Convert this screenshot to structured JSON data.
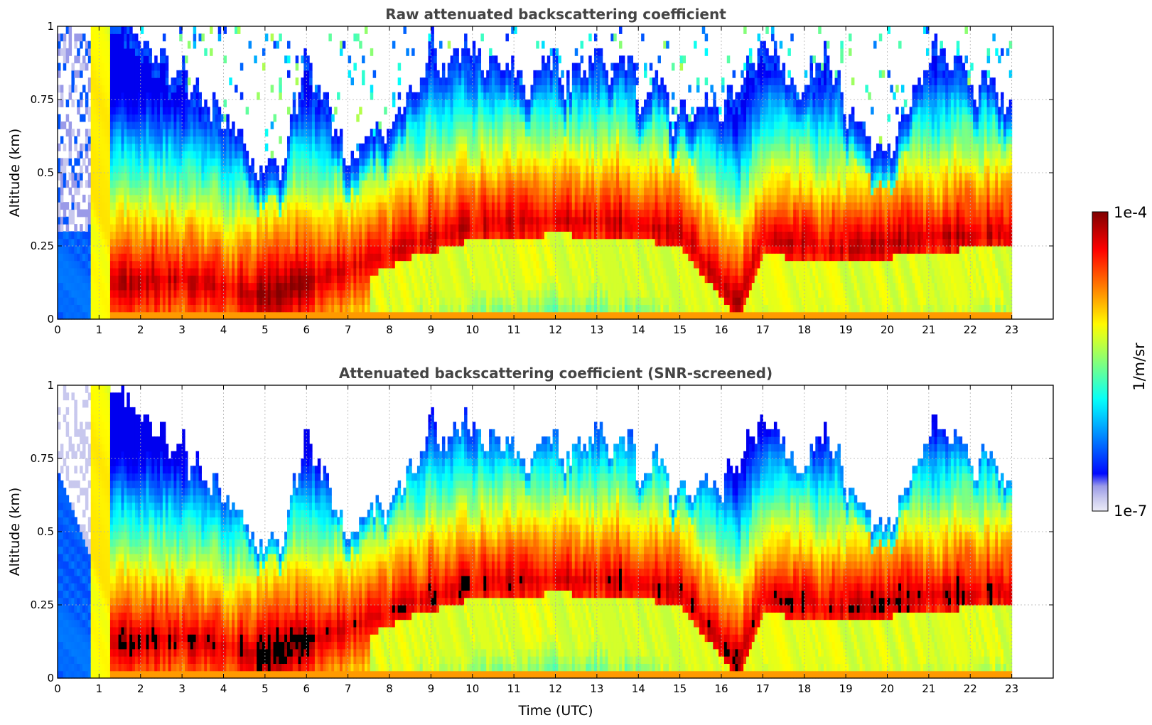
{
  "chart_data": [
    {
      "type": "heatmap",
      "title": "Raw attenuated backscattering coefficient",
      "xlabel": "",
      "ylabel": "Altitude (km)",
      "xlim": [
        0,
        24
      ],
      "ylim": [
        0,
        1
      ],
      "x_ticks": [
        "0",
        "1",
        "2",
        "3",
        "4",
        "5",
        "6",
        "7",
        "8",
        "9",
        "10",
        "11",
        "12",
        "13",
        "14",
        "15",
        "16",
        "17",
        "18",
        "19",
        "20",
        "21",
        "22",
        "23"
      ],
      "y_ticks": [
        "0",
        "0.25",
        "0.5",
        "0.75",
        "1"
      ],
      "grid": true,
      "data_time_range": [
        0,
        23
      ],
      "screened": false,
      "features": {
        "boundary_layer_top_km": [
          [
            1.3,
            0.95
          ],
          [
            2,
            0.9
          ],
          [
            3,
            0.78
          ],
          [
            4,
            0.62
          ],
          [
            4.5,
            0.55
          ],
          [
            5,
            0.48
          ],
          [
            5.5,
            0.5
          ],
          [
            6,
            0.85
          ],
          [
            7,
            0.5
          ],
          [
            8,
            0.6
          ],
          [
            9,
            0.85
          ],
          [
            10,
            0.85
          ],
          [
            11,
            0.75
          ],
          [
            12,
            0.78
          ],
          [
            13,
            0.8
          ],
          [
            14,
            0.75
          ],
          [
            15,
            0.65
          ],
          [
            16,
            0.62
          ],
          [
            17,
            0.9
          ],
          [
            18,
            0.7
          ],
          [
            18.5,
            0.9
          ],
          [
            19,
            0.65
          ],
          [
            20,
            0.5
          ],
          [
            21,
            0.85
          ],
          [
            22,
            0.75
          ],
          [
            23,
            0.7
          ]
        ],
        "max_layer_km": [
          [
            1.5,
            0.12
          ],
          [
            3,
            0.14
          ],
          [
            5,
            0.08
          ],
          [
            6.5,
            0.15
          ],
          [
            7.5,
            0.2
          ],
          [
            8.5,
            0.26
          ],
          [
            10,
            0.32
          ],
          [
            12,
            0.34
          ],
          [
            13.5,
            0.33
          ],
          [
            15,
            0.3
          ],
          [
            16.4,
            0.05
          ],
          [
            17,
            0.27
          ],
          [
            19,
            0.24
          ],
          [
            21,
            0.28
          ],
          [
            23,
            0.3
          ]
        ]
      }
    },
    {
      "type": "heatmap",
      "title": "Attenuated backscattering coefficient (SNR-screened)",
      "xlabel": "Time (UTC)",
      "ylabel": "Altitude (km)",
      "xlim": [
        0,
        24
      ],
      "ylim": [
        0,
        1
      ],
      "x_ticks": [
        "0",
        "1",
        "2",
        "3",
        "4",
        "5",
        "6",
        "7",
        "8",
        "9",
        "10",
        "11",
        "12",
        "13",
        "14",
        "15",
        "16",
        "17",
        "18",
        "19",
        "20",
        "21",
        "22",
        "23"
      ],
      "y_ticks": [
        "0",
        "0.25",
        "0.5",
        "0.75",
        "1"
      ],
      "grid": true,
      "data_time_range": [
        0,
        23
      ],
      "screened": true
    }
  ],
  "colorbar": {
    "label": "1/m/sr",
    "max_label": "1e-4",
    "min_label": "1e-7",
    "log_min": -7,
    "log_max": -4,
    "colormap": "jet",
    "low_end_colors": [
      "#ebebf7",
      "#c8c8ee",
      "#9a9ae8"
    ],
    "high_end_color": "#800000"
  }
}
